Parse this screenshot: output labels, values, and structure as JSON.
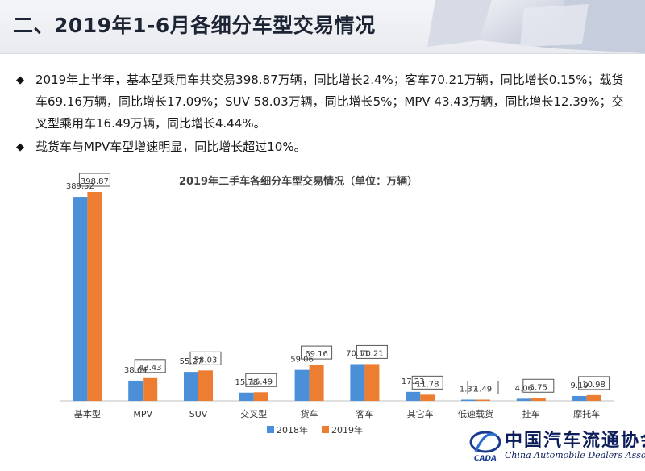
{
  "header": {
    "title": "二、2019年1-6月各细分车型交易情况"
  },
  "bullets": [
    "2019年上半年，基本型乘用车共交易398.87万辆，同比增长2.4%；客车70.21万辆，同比增长0.15%；载货车69.16万辆，同比增长17.09%；SUV 58.03万辆，同比增长5%；MPV 43.43万辆，同比增长12.39%；交叉型乘用车16.49万辆，同比增长4.44%。",
    "载货车与MPV车型增速明显，同比增长超过10%。"
  ],
  "chart_data": {
    "type": "bar",
    "title": "2019年二手车各细分车型交易情况（单位：万辆）",
    "categories": [
      "基本型",
      "MPV",
      "SUV",
      "交叉型",
      "货车",
      "客车",
      "其它车",
      "低速载货",
      "挂车",
      "摩托车"
    ],
    "series": [
      {
        "name": "2018年",
        "color": "#4a8fd8",
        "values": [
          389.52,
          38.64,
          55.27,
          15.78,
          59.06,
          70.11,
          17.23,
          1.37,
          4.06,
          9.19
        ]
      },
      {
        "name": "2019年",
        "color": "#ed7d31",
        "values": [
          398.87,
          43.43,
          58.03,
          16.49,
          69.16,
          70.21,
          11.78,
          1.49,
          5.75,
          10.98
        ]
      }
    ],
    "boxed_series": "2019年",
    "legend_position": "bottom",
    "grid": false
  },
  "logo": {
    "name_cn": "中国汽车流通协会",
    "name_en": "China Automobile Dealers Association",
    "abbr": "CADA"
  }
}
